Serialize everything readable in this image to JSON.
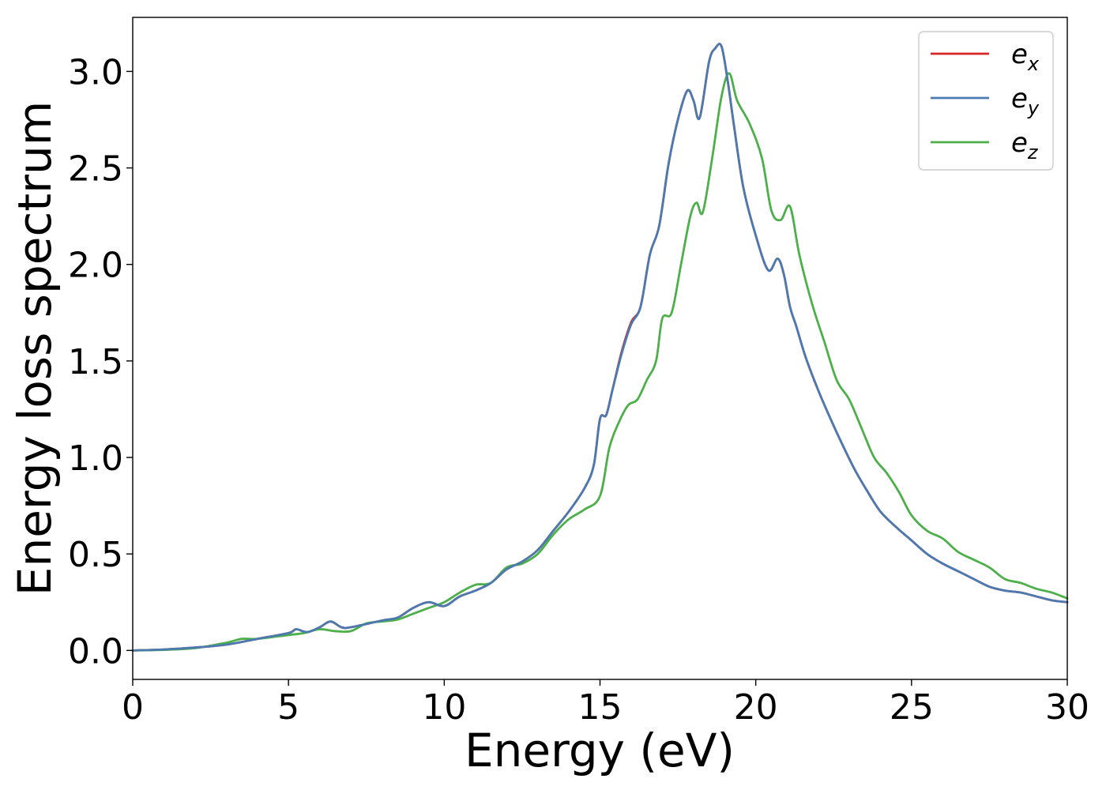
{
  "chart_data": {
    "type": "line",
    "title": "",
    "xlabel": "Energy (eV)",
    "ylabel": "Energy loss spectrum",
    "xlim": [
      0,
      30
    ],
    "ylim": [
      -0.15,
      3.28
    ],
    "xticks": [
      0,
      5,
      10,
      15,
      20,
      25,
      30
    ],
    "xtick_labels": [
      "0",
      "5",
      "10",
      "15",
      "20",
      "25",
      "30"
    ],
    "yticks": [
      0.0,
      0.5,
      1.0,
      1.5,
      2.0,
      2.5,
      3.0
    ],
    "ytick_labels": [
      "0.0",
      "0.5",
      "1.0",
      "1.5",
      "2.0",
      "2.5",
      "3.0"
    ],
    "grid": false,
    "legend_position": "top-right",
    "series": [
      {
        "name": "e_x",
        "legend_base": "e",
        "legend_sub": "x",
        "color": "#d62728",
        "x": [
          0,
          1,
          2,
          3,
          4,
          5,
          5.25,
          5.6,
          6,
          6.35,
          6.7,
          7,
          8,
          8.5,
          9,
          9.5,
          10,
          10.5,
          11,
          11.5,
          12,
          12.5,
          13,
          13.5,
          14,
          14.5,
          14.8,
          15,
          15.2,
          15.4,
          15.7,
          16,
          16.3,
          16.6,
          16.9,
          17.2,
          17.5,
          17.8,
          18,
          18.2,
          18.5,
          18.7,
          18.9,
          19.1,
          19.3,
          19.6,
          20,
          20.4,
          20.7,
          20.9,
          21.1,
          21.3,
          21.6,
          22,
          22.4,
          22.8,
          23.2,
          23.6,
          24,
          24.5,
          25,
          25.5,
          26,
          26.5,
          27,
          27.5,
          28,
          28.5,
          29,
          29.5,
          30
        ],
        "y": [
          0.0,
          0.005,
          0.015,
          0.03,
          0.06,
          0.09,
          0.11,
          0.095,
          0.12,
          0.15,
          0.12,
          0.12,
          0.155,
          0.17,
          0.22,
          0.25,
          0.23,
          0.28,
          0.31,
          0.35,
          0.42,
          0.46,
          0.52,
          0.62,
          0.72,
          0.84,
          0.96,
          1.2,
          1.22,
          1.35,
          1.55,
          1.7,
          1.78,
          2.05,
          2.2,
          2.52,
          2.75,
          2.9,
          2.85,
          2.76,
          3.05,
          3.12,
          3.13,
          2.95,
          2.72,
          2.4,
          2.15,
          1.97,
          2.03,
          1.95,
          1.78,
          1.68,
          1.52,
          1.35,
          1.2,
          1.06,
          0.93,
          0.82,
          0.72,
          0.64,
          0.57,
          0.5,
          0.45,
          0.41,
          0.37,
          0.33,
          0.31,
          0.3,
          0.28,
          0.26,
          0.25
        ]
      },
      {
        "name": "e_y",
        "legend_base": "e",
        "legend_sub": "y",
        "color": "#4a7ab0",
        "x": [
          0,
          1,
          2,
          3,
          4,
          5,
          5.25,
          5.6,
          6,
          6.35,
          6.7,
          7,
          8,
          8.5,
          9,
          9.5,
          10,
          10.5,
          11,
          11.5,
          12,
          12.5,
          13,
          13.5,
          14,
          14.5,
          14.8,
          15,
          15.2,
          15.4,
          15.7,
          16,
          16.3,
          16.6,
          16.9,
          17.2,
          17.5,
          17.8,
          18,
          18.2,
          18.5,
          18.7,
          18.9,
          19.1,
          19.3,
          19.6,
          20,
          20.4,
          20.7,
          20.9,
          21.1,
          21.3,
          21.6,
          22,
          22.4,
          22.8,
          23.2,
          23.6,
          24,
          24.5,
          25,
          25.5,
          26,
          26.5,
          27,
          27.5,
          28,
          28.5,
          29,
          29.5,
          30
        ],
        "y": [
          0.0,
          0.005,
          0.015,
          0.03,
          0.06,
          0.09,
          0.11,
          0.095,
          0.12,
          0.15,
          0.12,
          0.12,
          0.155,
          0.17,
          0.22,
          0.25,
          0.23,
          0.28,
          0.31,
          0.35,
          0.42,
          0.46,
          0.52,
          0.62,
          0.72,
          0.84,
          0.96,
          1.2,
          1.22,
          1.35,
          1.54,
          1.69,
          1.78,
          2.05,
          2.2,
          2.52,
          2.75,
          2.9,
          2.85,
          2.76,
          3.05,
          3.12,
          3.13,
          2.95,
          2.72,
          2.4,
          2.15,
          1.97,
          2.03,
          1.95,
          1.78,
          1.68,
          1.52,
          1.35,
          1.2,
          1.06,
          0.93,
          0.82,
          0.72,
          0.64,
          0.57,
          0.5,
          0.45,
          0.41,
          0.37,
          0.33,
          0.31,
          0.3,
          0.28,
          0.26,
          0.25
        ]
      },
      {
        "name": "e_z",
        "legend_base": "e",
        "legend_sub": "z",
        "color": "#4daf4a",
        "x": [
          0,
          1,
          2,
          3,
          3.5,
          4,
          5,
          5.5,
          6,
          6.5,
          7,
          7.5,
          8,
          8.5,
          9,
          9.5,
          10,
          10.5,
          11,
          11.5,
          12,
          12.5,
          13,
          13.5,
          14,
          14.5,
          15,
          15.3,
          15.6,
          15.9,
          16.2,
          16.5,
          16.8,
          17,
          17.3,
          17.6,
          17.9,
          18.1,
          18.3,
          18.6,
          18.9,
          19.15,
          19.4,
          19.8,
          20.2,
          20.5,
          20.8,
          21.1,
          21.4,
          21.8,
          22.2,
          22.6,
          23,
          23.4,
          23.8,
          24.2,
          24.6,
          25,
          25.5,
          26,
          26.5,
          27,
          27.5,
          28,
          28.5,
          29,
          29.5,
          30
        ],
        "y": [
          0.0,
          0.003,
          0.012,
          0.04,
          0.06,
          0.06,
          0.08,
          0.09,
          0.11,
          0.1,
          0.1,
          0.14,
          0.15,
          0.16,
          0.19,
          0.22,
          0.25,
          0.3,
          0.34,
          0.35,
          0.43,
          0.45,
          0.5,
          0.6,
          0.68,
          0.73,
          0.8,
          1.05,
          1.18,
          1.27,
          1.3,
          1.4,
          1.5,
          1.72,
          1.75,
          2.0,
          2.25,
          2.32,
          2.27,
          2.55,
          2.87,
          2.99,
          2.85,
          2.73,
          2.55,
          2.28,
          2.23,
          2.3,
          2.05,
          1.8,
          1.6,
          1.4,
          1.3,
          1.15,
          1.0,
          0.92,
          0.82,
          0.7,
          0.62,
          0.58,
          0.51,
          0.47,
          0.43,
          0.37,
          0.35,
          0.32,
          0.3,
          0.27
        ]
      }
    ]
  }
}
